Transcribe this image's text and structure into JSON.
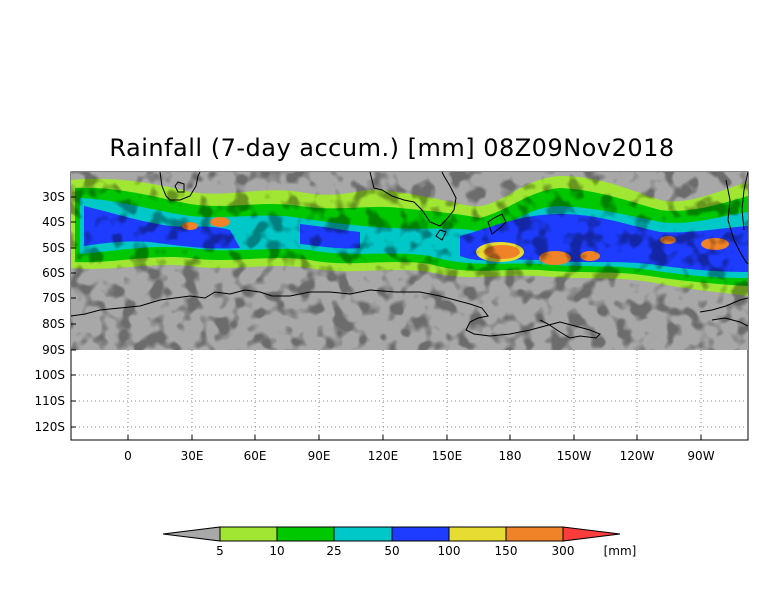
{
  "title": "Rainfall (7-day accum.) [mm] 08Z09Nov2018",
  "lat_labels": [
    "30S",
    "40S",
    "50S",
    "60S",
    "70S",
    "80S",
    "90S",
    "100S",
    "110S",
    "120S"
  ],
  "lon_labels": [
    "0",
    "30E",
    "60E",
    "90E",
    "120E",
    "150E",
    "180",
    "150W",
    "120W",
    "90W"
  ],
  "legend": {
    "unit": "[mm]",
    "thresholds": [
      "5",
      "10",
      "25",
      "50",
      "100",
      "150",
      "300"
    ],
    "colors": {
      "below": "#a8a8a8",
      "c5_10": "#a0e632",
      "c10_25": "#00c800",
      "c25_50": "#00c8c8",
      "c50_100": "#1e3cff",
      "c100_150": "#e6dc32",
      "c150_300": "#f08228",
      "above": "#fa3c3c"
    }
  }
}
